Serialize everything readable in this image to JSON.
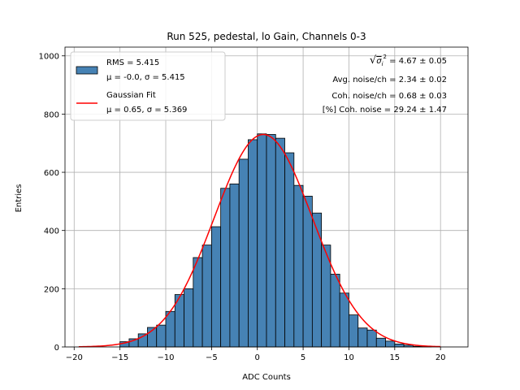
{
  "chart_data": {
    "type": "bar",
    "title": "Run 525, pedestal, lo Gain, Channels 0-3",
    "xlabel": "ADC Counts",
    "ylabel": "Entries",
    "xlim": [
      -21,
      23
    ],
    "ylim": [
      0,
      1030
    ],
    "xticks": [
      -20,
      -15,
      -10,
      -5,
      0,
      5,
      10,
      15,
      20
    ],
    "yticks": [
      0,
      200,
      400,
      600,
      800,
      1000
    ],
    "grid": true,
    "legend_position": "top-left",
    "bin_width": 1,
    "bin_left_edges": [
      -15,
      -14,
      -13,
      -12,
      -11,
      -10,
      -9,
      -8,
      -7,
      -6,
      -5,
      -4,
      -3,
      -2,
      -1,
      0,
      1,
      2,
      3,
      4,
      5,
      6,
      7,
      8,
      9,
      10,
      11,
      12,
      13,
      14,
      15,
      16,
      17,
      18
    ],
    "counts": [
      18,
      28,
      45,
      67,
      75,
      122,
      180,
      200,
      307,
      350,
      413,
      545,
      560,
      645,
      712,
      732,
      730,
      717,
      667,
      555,
      518,
      460,
      350,
      250,
      185,
      110,
      65,
      58,
      30,
      20,
      10,
      6,
      2,
      1
    ],
    "bar_color": "#4682b4",
    "fit_curve": {
      "name": "Gaussian Fit",
      "color": "#ff0000",
      "mu": 0.65,
      "sigma": 5.369,
      "amplitude": 730,
      "x_range": [
        -19.5,
        20
      ]
    },
    "legend": [
      {
        "kind": "patch",
        "line1": "RMS = 5.415",
        "line2": "μ = -0.0, σ = 5.415"
      },
      {
        "kind": "line",
        "line1": "Gaussian Fit",
        "line2": "μ = 0.65, σ = 5.369"
      }
    ],
    "annotations": [
      {
        "prefix": "√",
        "symbol": "σ",
        "sub": "i",
        "sup": "2",
        "value": " = 4.67 ± 0.05"
      },
      {
        "text": "Avg. noise/ch = 2.34 ± 0.02"
      },
      {
        "text": "Coh. noise/ch = 0.68 ± 0.03"
      },
      {
        "text": "[%] Coh. noise = 29.24 ± 1.47"
      }
    ]
  }
}
